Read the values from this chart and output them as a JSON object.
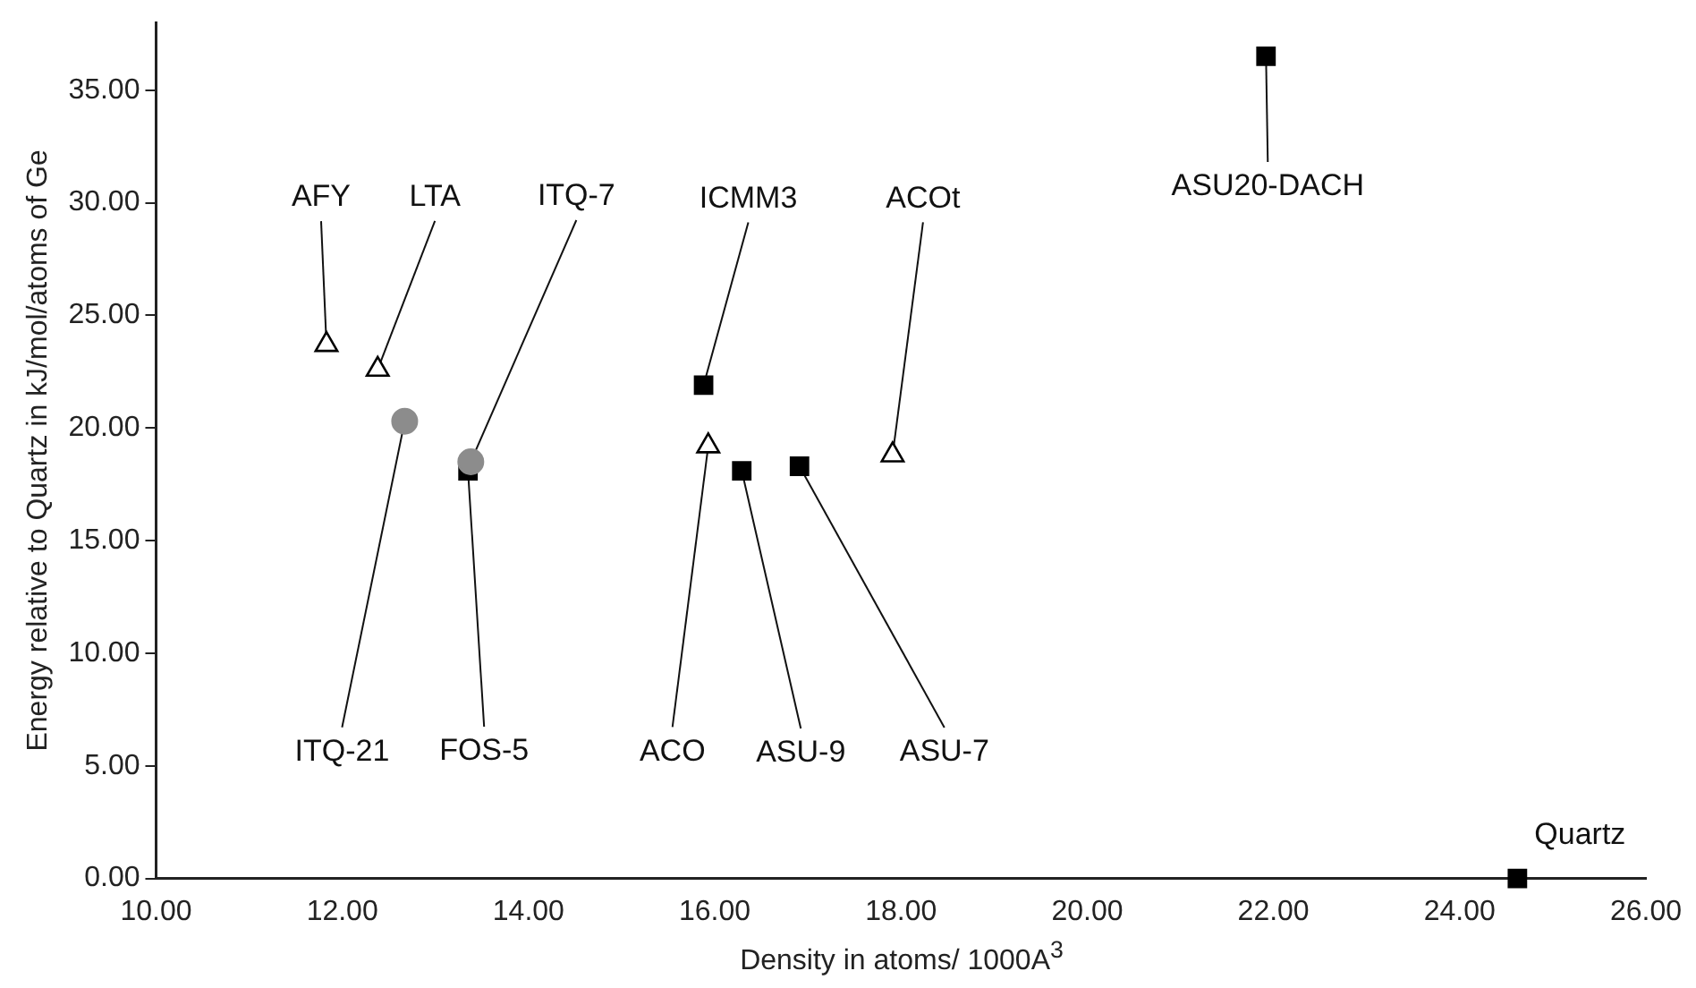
{
  "chart_data": {
    "type": "scatter",
    "xlabel": "Density in atoms/ 1000A$^{3}$",
    "ylabel": "Energy relative to Quartz in kJ/mol/atoms of Ge",
    "series": [
      {
        "color": "#000000",
        "marker": "triangle",
        "x": [
          11.83,
          12.38,
          15.93,
          17.91
        ],
        "values": [
          23.7,
          22.6,
          19.2,
          18.8
        ]
      },
      {
        "color": "#8c8c8c",
        "marker": "circle",
        "x": [
          12.67,
          13.38
        ],
        "values": [
          20.3,
          18.5
        ]
      },
      {
        "color": "#000000",
        "marker": "square",
        "x": [
          13.35,
          15.88,
          16.29,
          16.91,
          21.92,
          24.62
        ],
        "values": [
          18.1,
          21.9,
          18.1,
          18.3,
          36.5,
          0
        ]
      }
    ],
    "xlim": [
      10,
      26
    ],
    "ylim": [
      0,
      38
    ],
    "xticks": [
      {
        "value": 10,
        "label": "10.00"
      },
      {
        "value": 12,
        "label": "12.00"
      },
      {
        "value": 14,
        "label": "14.00"
      },
      {
        "value": 16,
        "label": "16.00"
      },
      {
        "value": 18,
        "label": "18.00"
      },
      {
        "value": 20,
        "label": "20.00"
      },
      {
        "value": 22,
        "label": "22.00"
      },
      {
        "value": 24,
        "label": "24.00"
      },
      {
        "value": 26,
        "label": "26.00"
      }
    ],
    "yticks": [
      {
        "value": 0,
        "label": "0.00"
      },
      {
        "value": 5,
        "label": "5.00"
      },
      {
        "value": 10,
        "label": "10.00"
      },
      {
        "value": 15,
        "label": "15.00"
      },
      {
        "value": 20,
        "label": "20.00"
      },
      {
        "value": 25,
        "label": "25.00"
      },
      {
        "value": 30,
        "label": "30.00"
      },
      {
        "value": 35,
        "label": "35.00"
      }
    ],
    "grid": false,
    "legend": false,
    "annotations": [
      {
        "text": "AFY",
        "x": 11.83,
        "y": 23.7
      },
      {
        "text": "LTA",
        "x": 12.38,
        "y": 22.6
      },
      {
        "text": "ITQ-21",
        "x": 12.67,
        "y": 20.3
      },
      {
        "text": "FOS-5",
        "x": 13.35,
        "y": 18.1
      },
      {
        "text": "ITQ-7",
        "x": 13.38,
        "y": 18.5
      },
      {
        "text": "ICMM3",
        "x": 15.88,
        "y": 21.9
      },
      {
        "text": "ACO",
        "x": 15.93,
        "y": 19.2
      },
      {
        "text": "ASU-9",
        "x": 16.29,
        "y": 18.1
      },
      {
        "text": "ASU-7",
        "x": 16.91,
        "y": 18.3
      },
      {
        "text": "ACOt",
        "x": 17.91,
        "y": 18.8
      },
      {
        "text": "ASU20-DACH",
        "x": 21.92,
        "y": 36.5
      },
      {
        "text": "Quartz",
        "x": 24.62,
        "y": 0
      }
    ]
  }
}
